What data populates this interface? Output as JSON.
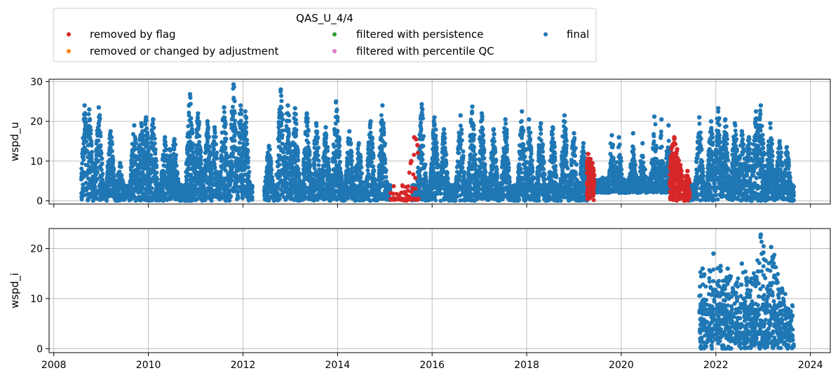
{
  "chart_data": [
    {
      "type": "scatter",
      "ylabel": "wspd_u",
      "xlim": [
        2007.9,
        2024.42
      ],
      "ylim": [
        -0.8,
        30.6
      ],
      "yticks": [
        0,
        10,
        20,
        30
      ],
      "grid": true,
      "series": [
        {
          "name": "removed by flag",
          "color": "#d62728",
          "segments": [
            {
              "x_start": 2015.12,
              "x_end": 2015.72,
              "mode": "flat",
              "y": 0.3,
              "peaks": [
                [
                  2015.62,
                  16.0
                ],
                [
                  2015.66,
                  15.5
                ],
                [
                  2015.56,
                  10.0
                ],
                [
                  2015.69,
                  14.0
                ]
              ]
            },
            {
              "x_start": 2019.27,
              "x_end": 2019.43,
              "mode": "burst",
              "peaks": [
                [
                  2019.3,
                  11.8
                ],
                [
                  2019.35,
                  10.5
                ],
                [
                  2019.39,
                  9.5
                ]
              ]
            },
            {
              "x_start": 2021.02,
              "x_end": 2021.45,
              "mode": "burst",
              "peaks": [
                [
                  2021.12,
                  16.0
                ],
                [
                  2021.08,
                  14.0
                ],
                [
                  2021.18,
                  13.0
                ],
                [
                  2021.25,
                  9.0
                ],
                [
                  2021.4,
                  7.5
                ]
              ]
            }
          ]
        },
        {
          "name": "removed or changed by adjustment",
          "color": "#ff7f0e",
          "segments": []
        },
        {
          "name": "filtered with persistence",
          "color": "#2ca02c",
          "segments": []
        },
        {
          "name": "filtered with percentile QC",
          "color": "#e377c2",
          "segments": []
        },
        {
          "name": "final",
          "color": "#1f77b4",
          "segments": [
            {
              "x_start": 2008.58,
              "x_end": 2010.95,
              "mode": "burst",
              "peaks": [
                [
                  2008.65,
                  24.0
                ],
                [
                  2008.75,
                  23.0
                ],
                [
                  2008.95,
                  23.5
                ],
                [
                  2009.2,
                  17.5
                ],
                [
                  2009.4,
                  9.5
                ],
                [
                  2009.7,
                  19.0
                ],
                [
                  2009.85,
                  19.5
                ],
                [
                  2009.95,
                  21.0
                ],
                [
                  2010.1,
                  20.5
                ],
                [
                  2010.35,
                  16.0
                ],
                [
                  2010.45,
                  13.0
                ],
                [
                  2010.55,
                  15.5
                ]
              ]
            },
            {
              "x_start": 2010.75,
              "x_end": 2012.2,
              "mode": "burst",
              "peaks": [
                [
                  2010.88,
                  26.8
                ],
                [
                  2011.05,
                  22.0
                ],
                [
                  2011.25,
                  20.0
                ],
                [
                  2011.4,
                  18.5
                ],
                [
                  2011.6,
                  23.5
                ],
                [
                  2011.8,
                  29.3
                ],
                [
                  2011.95,
                  24.0
                ],
                [
                  2012.05,
                  22.5
                ]
              ]
            },
            {
              "x_start": 2012.45,
              "x_end": 2015.12,
              "mode": "burst",
              "peaks": [
                [
                  2012.55,
                  13.8
                ],
                [
                  2012.8,
                  28.0
                ],
                [
                  2012.95,
                  24.0
                ],
                [
                  2013.1,
                  23.3
                ],
                [
                  2013.35,
                  22.0
                ],
                [
                  2013.55,
                  19.5
                ],
                [
                  2013.75,
                  18.5
                ],
                [
                  2013.97,
                  25.0
                ],
                [
                  2014.0,
                  21.0
                ],
                [
                  2014.25,
                  17.5
                ],
                [
                  2014.45,
                  14.5
                ],
                [
                  2014.7,
                  20.0
                ],
                [
                  2014.95,
                  24.0
                ]
              ]
            },
            {
              "x_start": 2015.58,
              "x_end": 2019.3,
              "mode": "burst",
              "peaks": [
                [
                  2015.78,
                  24.3
                ],
                [
                  2016.05,
                  21.0
                ],
                [
                  2016.25,
                  18.0
                ],
                [
                  2016.6,
                  21.5
                ],
                [
                  2016.85,
                  23.7
                ],
                [
                  2017.05,
                  22.0
                ],
                [
                  2017.3,
                  18.0
                ],
                [
                  2017.55,
                  20.5
                ],
                [
                  2017.9,
                  22.5
                ],
                [
                  2018.05,
                  20.5
                ],
                [
                  2018.3,
                  19.5
                ],
                [
                  2018.55,
                  18.5
                ],
                [
                  2018.8,
                  21.5
                ],
                [
                  2019.0,
                  17.0
                ],
                [
                  2019.2,
                  14.5
                ]
              ]
            },
            {
              "x_start": 2019.35,
              "x_end": 2021.05,
              "mode": "dense",
              "peaks": [
                [
                  2019.8,
                  16.5
                ],
                [
                  2019.95,
                  16.0
                ],
                [
                  2020.25,
                  17.0
                ],
                [
                  2020.45,
                  14.5
                ],
                [
                  2020.7,
                  21.2
                ],
                [
                  2020.85,
                  20.5
                ],
                [
                  2021.0,
                  19.0
                ]
              ]
            },
            {
              "x_start": 2021.4,
              "x_end": 2023.65,
              "mode": "burst",
              "peaks": [
                [
                  2021.65,
                  21.0
                ],
                [
                  2021.9,
                  20.0
                ],
                [
                  2022.05,
                  23.3
                ],
                [
                  2022.2,
                  20.5
                ],
                [
                  2022.4,
                  19.5
                ],
                [
                  2022.55,
                  17.5
                ],
                [
                  2022.7,
                  16.0
                ],
                [
                  2022.85,
                  22.5
                ],
                [
                  2022.95,
                  24.0
                ],
                [
                  2023.15,
                  19.5
                ],
                [
                  2023.35,
                  15.0
                ],
                [
                  2023.5,
                  13.5
                ]
              ]
            }
          ]
        }
      ]
    },
    {
      "type": "scatter",
      "ylabel": "wspd_i",
      "xlim": [
        2007.9,
        2024.42
      ],
      "ylim": [
        -0.8,
        24.0
      ],
      "yticks": [
        0,
        10,
        20
      ],
      "xticks": [
        2008,
        2010,
        2012,
        2014,
        2016,
        2018,
        2020,
        2022,
        2024
      ],
      "grid": true,
      "series": [
        {
          "name": "final",
          "color": "#1f77b4",
          "segments": [
            {
              "x_start": 2021.65,
              "x_end": 2023.65,
              "mode": "sparse",
              "peaks": [
                [
                  2021.72,
                  16.0
                ],
                [
                  2021.95,
                  19.0
                ],
                [
                  2022.1,
                  16.5
                ],
                [
                  2022.3,
                  14.0
                ],
                [
                  2022.75,
                  14.0
                ],
                [
                  2022.95,
                  22.8
                ],
                [
                  2023.17,
                  20.3
                ],
                [
                  2023.2,
                  16.5
                ],
                [
                  2023.4,
                  12.0
                ],
                [
                  2022.55,
                  17.0
                ],
                [
                  2022.25,
                  16.0
                ]
              ]
            }
          ]
        }
      ]
    }
  ],
  "legend": {
    "title": "QAS_U_4/4",
    "placement": "top-left, above plots",
    "entries": [
      {
        "label": "removed by flag",
        "color": "#d62728"
      },
      {
        "label": "filtered with persistence",
        "color": "#2ca02c"
      },
      {
        "label": "final",
        "color": "#1f77b4"
      },
      {
        "label": "removed or changed by adjustment",
        "color": "#ff7f0e"
      },
      {
        "label": "filtered with percentile QC",
        "color": "#e377c2"
      }
    ]
  }
}
